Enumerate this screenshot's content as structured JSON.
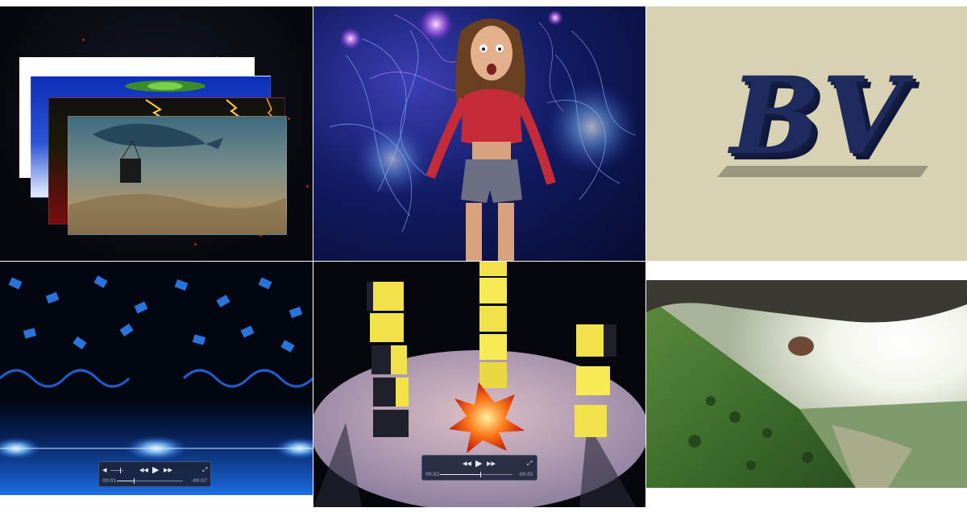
{
  "logo_text": "BV",
  "colors": {
    "logo": "#1e2b5c",
    "beige": "#d7d2b1",
    "crate_yellow": "#f2e24a",
    "fire": "#ff5a1a"
  },
  "players": [
    {
      "time_current": "00:01",
      "time_remaining": "-00:07",
      "controls": [
        "volume-icon",
        "rewind-icon",
        "play-icon",
        "fast-forward-icon",
        "fullscreen-icon"
      ],
      "progress": 0.25
    },
    {
      "time_current": "00:02",
      "time_remaining": "-00:01",
      "controls": [
        "rewind-icon",
        "play-icon",
        "fast-forward-icon",
        "fullscreen-icon"
      ],
      "progress": 0.55
    }
  ]
}
